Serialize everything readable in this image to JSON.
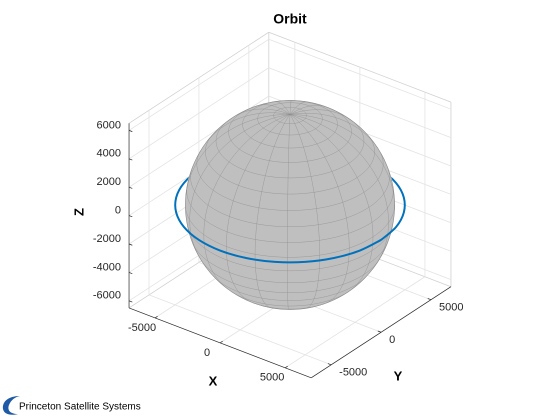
{
  "chart_data": {
    "type": "line3d",
    "title": "Orbit",
    "xlabel": "X",
    "ylabel": "Y",
    "zlabel": "Z",
    "xlim": [
      -7000,
      7000
    ],
    "ylim": [
      -7000,
      7000
    ],
    "zlim": [
      -6500,
      6500
    ],
    "xticks": [
      -5000,
      0,
      5000
    ],
    "yticks": [
      -5000,
      0,
      5000
    ],
    "zticks": [
      -6000,
      -4000,
      -2000,
      0,
      2000,
      4000,
      6000
    ],
    "grid": true,
    "sphere": {
      "radius": 6378,
      "color": "#bfbfbf"
    },
    "series": [
      {
        "color": "#0072bd",
        "x": [
          7000,
          6761,
          6062,
          4950,
          3500,
          1812,
          0,
          -1812,
          -3500,
          -4950,
          -6062,
          -6761,
          -7000,
          -6761,
          -6062,
          -4950,
          -3500,
          -1812,
          0,
          1812,
          3500,
          4950,
          6062,
          6761,
          7000
        ],
        "y": [
          0,
          1812,
          3500,
          4950,
          6062,
          6761,
          7000,
          6761,
          6062,
          4950,
          3500,
          1812,
          0,
          -1812,
          -3500,
          -4950,
          -6062,
          -6761,
          -7000,
          -6761,
          -6062,
          -4950,
          -3500,
          -1812,
          0
        ],
        "z": [
          0,
          0,
          0,
          0,
          0,
          0,
          0,
          0,
          0,
          0,
          0,
          0,
          0,
          0,
          0,
          0,
          0,
          0,
          0,
          0,
          0,
          0,
          0,
          0,
          0
        ]
      }
    ]
  },
  "footer": {
    "text": "Princeton Satellite Systems"
  }
}
